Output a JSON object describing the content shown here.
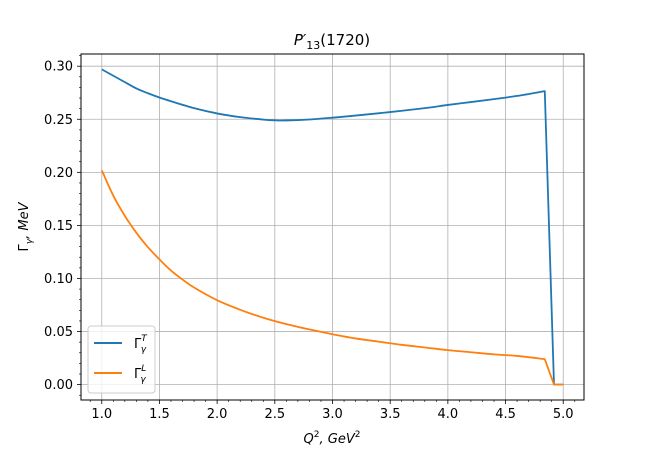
{
  "chart_data": {
    "type": "line",
    "title_base": "P′",
    "title_sub": "13",
    "title_tail": "(1720)",
    "xlabel_main": "Q",
    "xlabel_sup": "2",
    "xlabel_tail": ", GeV",
    "xlabel_sup2": "2",
    "ylabel_main": "Γ",
    "ylabel_sub": "γ",
    "ylabel_tail": ", MeV",
    "xlim": [
      0.82,
      5.18
    ],
    "ylim": [
      -0.0145,
      0.3115
    ],
    "xticks": [
      1.0,
      1.5,
      2.0,
      2.5,
      3.0,
      3.5,
      4.0,
      4.5,
      5.0
    ],
    "xtick_labels": [
      "1.0",
      "1.5",
      "2.0",
      "2.5",
      "3.0",
      "3.5",
      "4.0",
      "4.5",
      "5.0"
    ],
    "yticks": [
      0.0,
      0.05,
      0.1,
      0.15,
      0.2,
      0.25,
      0.3
    ],
    "ytick_labels": [
      "0.00",
      "0.05",
      "0.10",
      "0.15",
      "0.20",
      "0.25",
      "0.30"
    ],
    "x_minor_step": 0.1,
    "y_minor_step": 0.01,
    "grid": true,
    "legend_position": "lower-left",
    "series": [
      {
        "name_base": "Γ",
        "name_sub": "γ",
        "name_sup": "T",
        "color": "#1f77b4",
        "x": [
          1.0,
          1.1,
          1.2,
          1.3,
          1.4,
          1.5,
          1.6,
          1.8,
          2.0,
          2.2,
          2.4,
          2.5,
          2.6,
          2.8,
          3.0,
          3.2,
          3.5,
          3.8,
          4.0,
          4.2,
          4.4,
          4.6,
          4.84,
          4.92,
          5.0
        ],
        "y": [
          0.297,
          0.291,
          0.285,
          0.279,
          0.2745,
          0.2705,
          0.267,
          0.2605,
          0.2555,
          0.252,
          0.2497,
          0.249,
          0.2489,
          0.2498,
          0.2515,
          0.2535,
          0.2568,
          0.2605,
          0.2635,
          0.2662,
          0.269,
          0.272,
          0.2765,
          0.0,
          0.0
        ]
      },
      {
        "name_base": "Γ",
        "name_sub": "γ",
        "name_sup": "L",
        "color": "#ff7f0e",
        "x": [
          1.0,
          1.1,
          1.2,
          1.3,
          1.4,
          1.5,
          1.6,
          1.7,
          1.8,
          2.0,
          2.2,
          2.4,
          2.6,
          2.8,
          3.0,
          3.2,
          3.4,
          3.6,
          3.8,
          4.0,
          4.2,
          4.4,
          4.6,
          4.84,
          4.92,
          5.0
        ],
        "y": [
          0.202,
          0.178,
          0.159,
          0.143,
          0.1295,
          0.118,
          0.1075,
          0.099,
          0.0915,
          0.0795,
          0.0705,
          0.063,
          0.057,
          0.052,
          0.0475,
          0.0435,
          0.0405,
          0.0375,
          0.035,
          0.0325,
          0.0305,
          0.0285,
          0.027,
          0.024,
          0.0,
          0.0
        ]
      }
    ]
  }
}
